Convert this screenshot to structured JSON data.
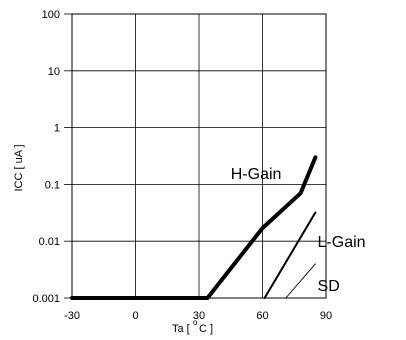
{
  "chart_data": {
    "type": "line",
    "title": "",
    "xlabel_prefix": "Ta [",
    "xlabel_degree": "o",
    "xlabel_suffix": "C ]",
    "ylabel": "ICC [ uA ]",
    "xlim": [
      -30,
      90
    ],
    "ylim": [
      0.001,
      100
    ],
    "yscale": "log",
    "grid": true,
    "x_ticks": [
      {
        "value": -30,
        "label": "-30"
      },
      {
        "value": 0,
        "label": "0"
      },
      {
        "value": 30,
        "label": "30"
      },
      {
        "value": 60,
        "label": "60"
      },
      {
        "value": 90,
        "label": "90"
      }
    ],
    "y_ticks": [
      {
        "value": 100,
        "label": "100"
      },
      {
        "value": 10,
        "label": "10"
      },
      {
        "value": 1,
        "label": "1"
      },
      {
        "value": 0.1,
        "label": "0.1"
      },
      {
        "value": 0.01,
        "label": "0.01"
      },
      {
        "value": 0.001,
        "label": "0.001"
      }
    ],
    "series": [
      {
        "name": "H-Gain",
        "weight": "thick",
        "points": [
          [
            -30,
            0.001
          ],
          [
            34,
            0.001
          ],
          [
            60,
            0.017
          ],
          [
            78,
            0.07
          ],
          [
            85,
            0.3
          ]
        ]
      },
      {
        "name": "L-Gain",
        "weight": "medium",
        "points": [
          [
            61,
            0.001
          ],
          [
            85,
            0.032
          ]
        ]
      },
      {
        "name": "SD",
        "weight": "thin",
        "points": [
          [
            71,
            0.001
          ],
          [
            85,
            0.004
          ]
        ]
      }
    ],
    "labels": [
      {
        "series": "H-Gain",
        "text": "H-Gain",
        "at": [
          45,
          0.16
        ]
      },
      {
        "series": "L-Gain",
        "text": "L-Gain",
        "at": [
          86,
          0.01
        ]
      },
      {
        "series": "SD",
        "text": "SD",
        "at": [
          86,
          0.0017
        ]
      }
    ]
  }
}
